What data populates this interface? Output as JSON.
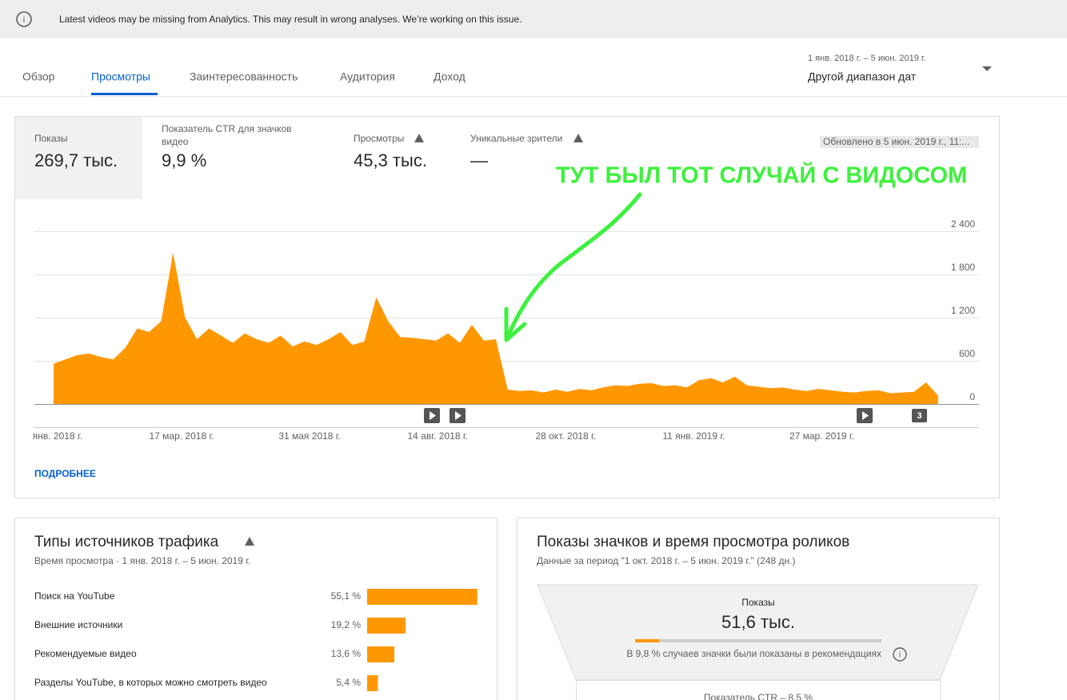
{
  "banner": {
    "text": "Latest videos may be missing from Analytics. This may result in wrong analyses. We’re working on this issue."
  },
  "tabs": [
    "Обзор",
    "Просмотры",
    "Заинтересованность",
    "Аудитория",
    "Доход"
  ],
  "date_range": {
    "period": "1 янв. 2018 г. – 5 июн. 2019 г.",
    "label": "Другой диапазон дат"
  },
  "metrics": [
    {
      "label": "Показы",
      "value": "269,7 тыс."
    },
    {
      "label": "Показатель CTR для значков видео",
      "value": "9,9 %"
    },
    {
      "label": "Просмотры",
      "value": "45,3 тыс."
    },
    {
      "label": "Уникальные зрители",
      "value": "—"
    }
  ],
  "updated": "Обновлено в 5 июн. 2019 г., 11:...",
  "more_link": "ПОДРОБНЕЕ",
  "chart_data": [
    {
      "type": "area",
      "color": "#ff9800",
      "annotation": "ТУТ БЫЛ ТОТ СЛУЧАЙ С ВИДОСОМ",
      "marker_group_label": "3",
      "x": [
        "2018-01-01",
        "2018-01-08",
        "2018-01-15",
        "2018-01-22",
        "2018-01-29",
        "2018-02-05",
        "2018-02-12",
        "2018-02-19",
        "2018-02-26",
        "2018-03-05",
        "2018-03-12",
        "2018-03-19",
        "2018-03-26",
        "2018-04-02",
        "2018-04-09",
        "2018-04-16",
        "2018-04-23",
        "2018-04-30",
        "2018-05-07",
        "2018-05-14",
        "2018-05-21",
        "2018-05-28",
        "2018-06-04",
        "2018-06-11",
        "2018-06-18",
        "2018-06-25",
        "2018-07-02",
        "2018-07-09",
        "2018-07-16",
        "2018-07-23",
        "2018-07-30",
        "2018-08-06",
        "2018-08-13",
        "2018-08-20",
        "2018-08-27",
        "2018-09-03",
        "2018-09-10",
        "2018-09-17",
        "2018-09-24",
        "2018-10-01",
        "2018-10-08",
        "2018-10-15",
        "2018-10-22",
        "2018-10-29",
        "2018-11-05",
        "2018-11-12",
        "2018-11-19",
        "2018-11-26",
        "2018-12-03",
        "2018-12-10",
        "2018-12-17",
        "2018-12-24",
        "2018-12-31",
        "2019-01-07",
        "2019-01-14",
        "2019-01-21",
        "2019-01-28",
        "2019-02-04",
        "2019-02-11",
        "2019-02-18",
        "2019-02-25",
        "2019-03-04",
        "2019-03-11",
        "2019-03-18",
        "2019-03-25",
        "2019-04-01",
        "2019-04-08",
        "2019-04-15",
        "2019-04-22",
        "2019-04-29",
        "2019-05-06",
        "2019-05-13",
        "2019-05-20",
        "2019-05-27",
        "2019-06-03"
      ],
      "values": [
        560,
        620,
        680,
        700,
        650,
        620,
        780,
        1050,
        1000,
        1150,
        2100,
        1200,
        900,
        1050,
        950,
        850,
        980,
        900,
        850,
        950,
        800,
        870,
        820,
        900,
        1000,
        820,
        870,
        1480,
        1150,
        930,
        920,
        900,
        880,
        980,
        850,
        1100,
        880,
        900,
        200,
        180,
        190,
        160,
        200,
        170,
        210,
        190,
        230,
        260,
        250,
        280,
        290,
        250,
        260,
        230,
        330,
        360,
        300,
        380,
        260,
        240,
        220,
        230,
        200,
        180,
        210,
        190,
        170,
        160,
        180,
        190,
        150,
        160,
        170,
        300,
        120
      ],
      "xlim": [
        "2018-01-01",
        "2019-06-05"
      ],
      "xticks": [
        {
          "value": "2018-01-01",
          "label": "янв. 2018 г."
        },
        {
          "value": "2018-03-17",
          "label": "17 мар. 2018 г."
        },
        {
          "value": "2018-05-31",
          "label": "31 мая 2018 г."
        },
        {
          "value": "2018-08-14",
          "label": "14 авг. 2018 г."
        },
        {
          "value": "2018-10-28",
          "label": "28 окт. 2018 г."
        },
        {
          "value": "2019-01-11",
          "label": "11 янв. 2019 г."
        },
        {
          "value": "2019-03-27",
          "label": "27 мар. 2019 г."
        }
      ],
      "ylim": [
        0,
        2400
      ],
      "yticks": [
        0,
        600,
        {
          "value": 1200,
          "label": "1 200"
        },
        {
          "value": 1800,
          "label": "1 800"
        },
        {
          "value": 2400,
          "label": "2 400"
        }
      ],
      "grid": true
    },
    {
      "type": "hbar",
      "title": "Типы источников трафика",
      "subtitle": "Время просмотра · 1 янв. 2018 г. – 5 июн. 2019 г.",
      "color": "#ff9800",
      "categories": [
        "Поиск на YouTube",
        "Внешние источники",
        "Рекомендуемые видео",
        "Разделы YouTube, в которых можно смотреть видео"
      ],
      "values": [
        55.1,
        19.2,
        13.6,
        5.4
      ],
      "value_labels": [
        "55,1 %",
        "19,2 %",
        "13,6 %",
        "5,4 %"
      ]
    }
  ],
  "funnel": {
    "title": "Показы значков и время просмотра роликов",
    "subtitle": "Данные за период \"1 окт. 2018 г. – 5 июн. 2019 г.\" (248 дн.)",
    "label": "Показы",
    "value": "51,6 тыс.",
    "share": 9.8,
    "note": "В 9,8 % случаев значки были показаны в рекомендациях",
    "next": "Показатель CTR – 8,5 %"
  }
}
